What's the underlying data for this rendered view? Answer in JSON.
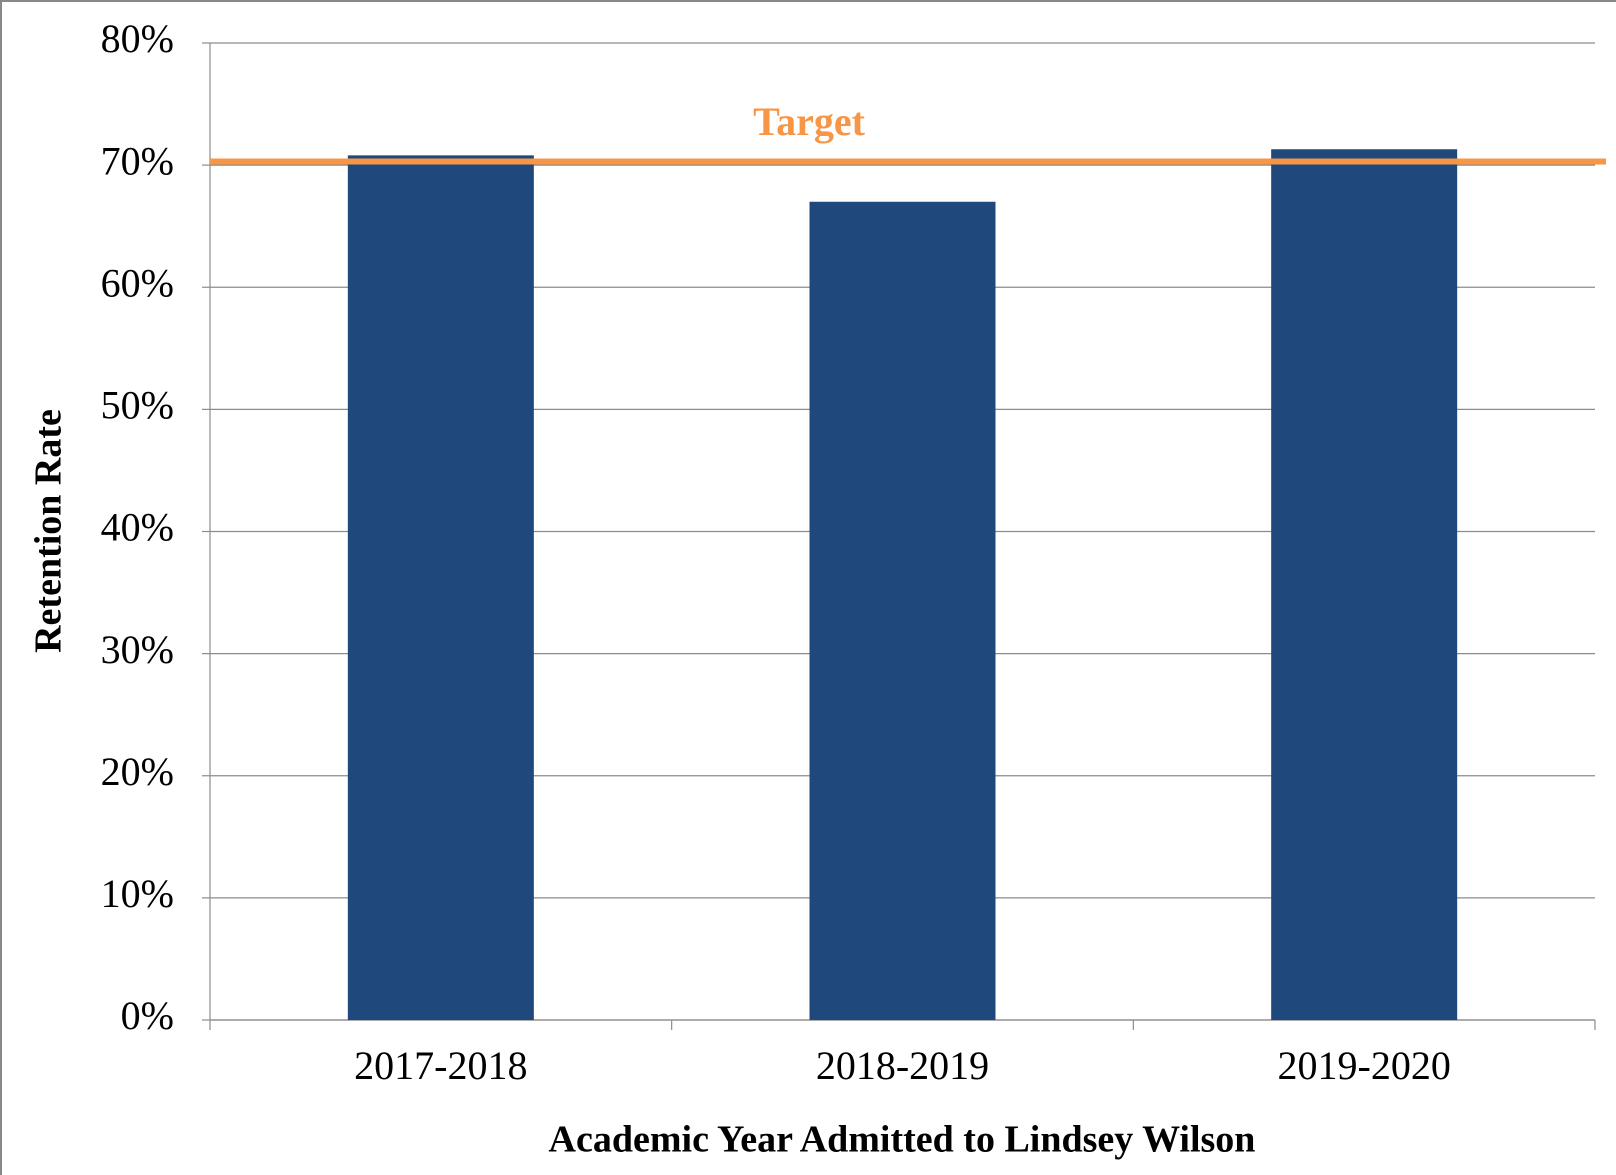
{
  "chart_data": {
    "type": "bar",
    "xlabel": "Academic Year Admitted to Lindsey Wilson",
    "ylabel": "Retention Rate",
    "categories": [
      "2017-2018",
      "2018-2019",
      "2019-2020"
    ],
    "values": [
      70.8,
      67.0,
      71.3
    ],
    "color": "#1f497d",
    "ylim": [
      0,
      80
    ],
    "yticks": [
      {
        "value": 0,
        "label": "0%"
      },
      {
        "value": 10,
        "label": "10%"
      },
      {
        "value": 20,
        "label": "20%"
      },
      {
        "value": 30,
        "label": "30%"
      },
      {
        "value": 40,
        "label": "40%"
      },
      {
        "value": 50,
        "label": "50%"
      },
      {
        "value": 60,
        "label": "60%"
      },
      {
        "value": 70,
        "label": "70%"
      },
      {
        "value": 80,
        "label": "80%"
      }
    ],
    "grid": true,
    "target": {
      "label": "Target",
      "value": 70.3,
      "color": "#f79646"
    }
  }
}
